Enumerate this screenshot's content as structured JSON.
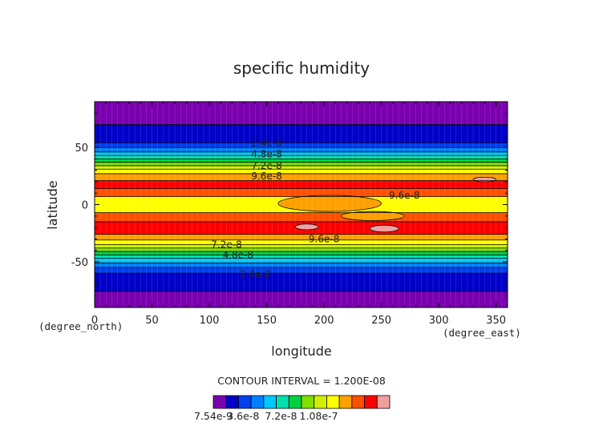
{
  "chart_data": {
    "type": "heatmap",
    "title": "specific humidity",
    "xlabel": "longitude",
    "ylabel": "latitude",
    "x_unit": "(degree_east)",
    "y_unit": "(degree_north)",
    "xlim": [
      0,
      360
    ],
    "ylim": [
      -90,
      90
    ],
    "x_ticks": [
      0,
      50,
      100,
      150,
      200,
      250,
      300,
      350
    ],
    "y_ticks": [
      -50,
      0,
      50
    ],
    "contour_interval_text": "CONTOUR INTERVAL = 1.200E-08",
    "colorbar": {
      "levels_count": 13,
      "min": 7.54e-09,
      "step": 1.2e-08,
      "colors": [
        "#7a00b0",
        "#0000c8",
        "#0040f0",
        "#0080ff",
        "#00c8ff",
        "#00e0b0",
        "#00d040",
        "#80e000",
        "#d0f000",
        "#ffff00",
        "#ffa000",
        "#ff5000",
        "#ff0000",
        "#f0a0a0"
      ],
      "tick_labels": [
        "7.54e-9",
        "3.6e-8",
        "7.2e-8",
        "1.08e-7"
      ]
    },
    "contour_labels": [
      {
        "text": "2.4e-8",
        "lon": 150,
        "lat": 54
      },
      {
        "text": "4.8e-8",
        "lon": 150,
        "lat": 44
      },
      {
        "text": "7.2e-8",
        "lon": 150,
        "lat": 34
      },
      {
        "text": "9.6e-8",
        "lon": 150,
        "lat": 25
      },
      {
        "text": "9.6e-8",
        "lon": 270,
        "lat": 8
      },
      {
        "text": "9.6e-8",
        "lon": 200,
        "lat": -30
      },
      {
        "text": "7.2e-8",
        "lon": 115,
        "lat": -35
      },
      {
        "text": "4.8e-8",
        "lon": 125,
        "lat": -44
      },
      {
        "text": "2.4e-8",
        "lon": 140,
        "lat": -61
      }
    ],
    "bands": [
      {
        "lat_from": 90,
        "lat_to": 70,
        "level": 0
      },
      {
        "lat_from": 70,
        "lat_to": 54,
        "level": 1
      },
      {
        "lat_from": 54,
        "lat_to": 50,
        "level": 2
      },
      {
        "lat_from": 50,
        "lat_to": 46,
        "level": 3
      },
      {
        "lat_from": 46,
        "lat_to": 43,
        "level": 4
      },
      {
        "lat_from": 43,
        "lat_to": 40,
        "level": 5
      },
      {
        "lat_from": 40,
        "lat_to": 37,
        "level": 6
      },
      {
        "lat_from": 37,
        "lat_to": 34,
        "level": 7
      },
      {
        "lat_from": 34,
        "lat_to": 31,
        "level": 8
      },
      {
        "lat_from": 31,
        "lat_to": 27,
        "level": 9
      },
      {
        "lat_from": 27,
        "lat_to": 21,
        "level": 10
      },
      {
        "lat_from": 21,
        "lat_to": 14,
        "level": 12
      },
      {
        "lat_from": 14,
        "lat_to": 7,
        "level": 11
      },
      {
        "lat_from": 7,
        "lat_to": -7,
        "level": 9
      },
      {
        "lat_from": -7,
        "lat_to": -15,
        "level": 11
      },
      {
        "lat_from": -15,
        "lat_to": -26,
        "level": 12
      },
      {
        "lat_from": -26,
        "lat_to": -31,
        "level": 10
      },
      {
        "lat_from": -31,
        "lat_to": -35,
        "level": 9
      },
      {
        "lat_from": -35,
        "lat_to": -38,
        "level": 8
      },
      {
        "lat_from": -38,
        "lat_to": -41,
        "level": 7
      },
      {
        "lat_from": -41,
        "lat_to": -44,
        "level": 6
      },
      {
        "lat_from": -44,
        "lat_to": -47,
        "level": 5
      },
      {
        "lat_from": -47,
        "lat_to": -51,
        "level": 4
      },
      {
        "lat_from": -51,
        "lat_to": -55,
        "level": 3
      },
      {
        "lat_from": -55,
        "lat_to": -60,
        "level": 2
      },
      {
        "lat_from": -60,
        "lat_to": -76,
        "level": 1
      },
      {
        "lat_from": -76,
        "lat_to": -90,
        "level": 0
      }
    ],
    "patches": [
      {
        "lon_from": 160,
        "lon_to": 250,
        "lat_from": 8,
        "lat_to": -6,
        "level": 10
      },
      {
        "lon_from": 215,
        "lon_to": 270,
        "lat_from": -6,
        "lat_to": -14,
        "level": 10
      },
      {
        "lon_from": 175,
        "lon_to": 195,
        "lat_from": -17,
        "lat_to": -22,
        "level": 13
      },
      {
        "lon_from": 240,
        "lon_to": 265,
        "lat_from": -18,
        "lat_to": -24,
        "level": 13
      },
      {
        "lon_from": 330,
        "lon_to": 350,
        "lat_from": 24,
        "lat_to": 20,
        "level": 13
      }
    ]
  }
}
